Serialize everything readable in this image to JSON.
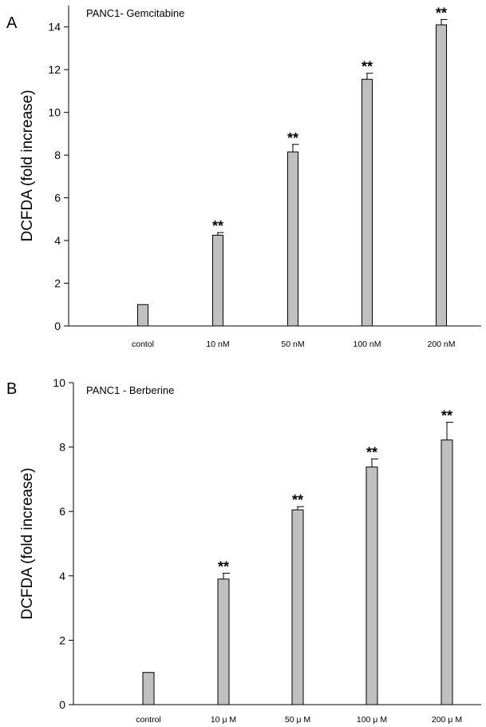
{
  "chart_data": [
    {
      "type": "bar",
      "panel": "A",
      "title": "PANC1- Gemcitabine",
      "ylabel": "DCFDA (fold increase)",
      "xlabel": "",
      "categories": [
        "contol",
        "10 nM",
        "50 nM",
        "100 nM",
        "200 nM"
      ],
      "values": [
        1.0,
        4.25,
        8.15,
        11.55,
        14.1
      ],
      "errors": [
        0.0,
        0.12,
        0.35,
        0.28,
        0.25
      ],
      "significance": [
        "",
        "**",
        "**",
        "**",
        "**"
      ],
      "ylim": [
        0,
        15
      ],
      "yticks": [
        0,
        2,
        4,
        6,
        8,
        10,
        12,
        14
      ],
      "grid": false,
      "bar_color": "#c0c0c0"
    },
    {
      "type": "bar",
      "panel": "B",
      "title": "PANC1 - Berberine",
      "ylabel": "DCFDA (fold increase)",
      "xlabel": "",
      "categories": [
        "control",
        "10 μ M",
        "50 μ M",
        "100 μ M",
        "200 μ M"
      ],
      "values": [
        1.0,
        3.9,
        6.05,
        7.38,
        8.22
      ],
      "errors": [
        0.0,
        0.18,
        0.1,
        0.25,
        0.55
      ],
      "significance": [
        "",
        "**",
        "**",
        "**",
        "**"
      ],
      "ylim": [
        0,
        10
      ],
      "yticks": [
        0,
        2,
        4,
        6,
        8,
        10
      ],
      "grid": false,
      "bar_color": "#c0c0c0"
    }
  ]
}
